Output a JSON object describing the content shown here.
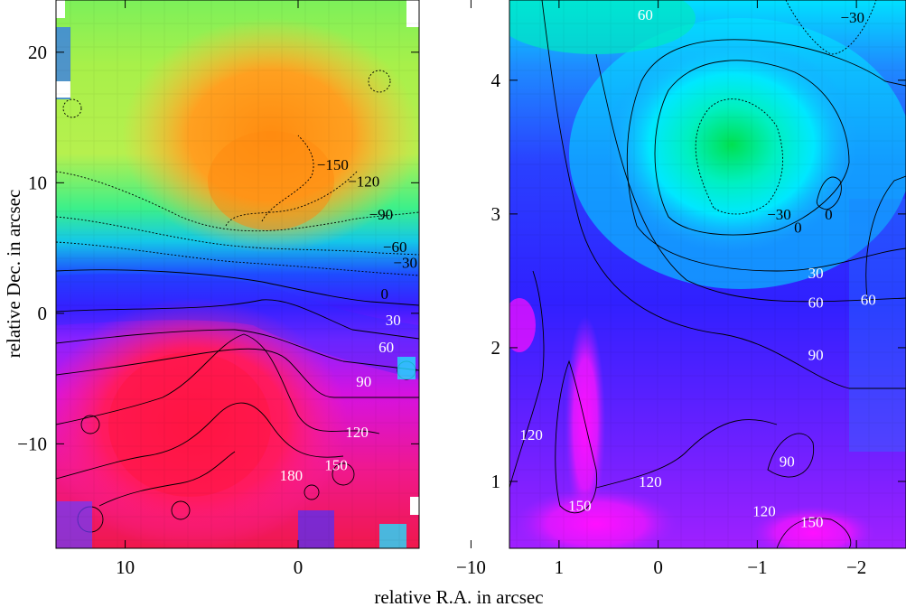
{
  "figure": {
    "shared_xlabel": "relative R.A. in arcsec"
  },
  "chart_data": [
    {
      "type": "heatmap",
      "panel": "left",
      "title": "",
      "xlabel": "relative R.A. in arcsec",
      "ylabel": "relative Dec. in arcsec",
      "xlim": [
        14,
        -7
      ],
      "ylim": [
        -18,
        24
      ],
      "x_inverted": true,
      "xticks": [
        10,
        0,
        -10
      ],
      "xtick_labels": [
        "10",
        "0",
        "−10"
      ],
      "yticks": [
        20,
        10,
        0,
        -10
      ],
      "ytick_labels": [
        "20",
        "10",
        "0",
        "−10"
      ],
      "grid": false,
      "legend": "none",
      "colormap": [
        "#ff1744",
        "#ff00cc",
        "#9c27ff",
        "#2a2aff",
        "#1e90ff",
        "#00e5ff",
        "#00e676",
        "#b2ff59",
        "#ffc107",
        "#ff9800"
      ],
      "contour_labels": [
        {
          "text": "−150",
          "x": -2.0,
          "y": 11.0
        },
        {
          "text": "−120",
          "x": -3.8,
          "y": 9.7
        },
        {
          "text": "−90",
          "x": -4.8,
          "y": 7.2
        },
        {
          "text": "−60",
          "x": -5.6,
          "y": 4.7
        },
        {
          "text": "−30",
          "x": -6.2,
          "y": 3.5
        },
        {
          "text": "0",
          "x": -5.0,
          "y": 1.1
        },
        {
          "text": "30",
          "x": -5.5,
          "y": -0.9
        },
        {
          "text": "60",
          "x": -5.1,
          "y": -3.0
        },
        {
          "text": "90",
          "x": -3.8,
          "y": -5.6
        },
        {
          "text": "120",
          "x": -3.4,
          "y": -9.5
        },
        {
          "text": "150",
          "x": -2.2,
          "y": -12.0
        },
        {
          "text": "180",
          "x": 0.4,
          "y": -12.8
        }
      ]
    },
    {
      "type": "heatmap",
      "panel": "right",
      "title": "",
      "xlabel": "relative R.A. in arcsec",
      "ylabel": "",
      "xlim": [
        1.5,
        -2.5
      ],
      "ylim": [
        0.5,
        4.6
      ],
      "x_inverted": true,
      "xticks": [
        1,
        0,
        -1,
        -2
      ],
      "xtick_labels": [
        "1",
        "0",
        "−1",
        "−2"
      ],
      "yticks": [
        4,
        3,
        2,
        1
      ],
      "ytick_labels": [
        "4",
        "3",
        "2",
        "1"
      ],
      "grid": false,
      "legend": "none",
      "colormap": [
        "#ff1744",
        "#ff00cc",
        "#9c27ff",
        "#2a2aff",
        "#1e90ff",
        "#00e5ff",
        "#00e676",
        "#b2ff59",
        "#ffc107",
        "#ff9800"
      ],
      "contour_labels": [
        {
          "text": "60",
          "x": 0.13,
          "y": 4.45
        },
        {
          "text": "−30",
          "x": -1.96,
          "y": 4.43
        },
        {
          "text": "−30",
          "x": -1.22,
          "y": 2.96
        },
        {
          "text": "0",
          "x": -1.41,
          "y": 2.86
        },
        {
          "text": "0",
          "x": -1.72,
          "y": 2.96
        },
        {
          "text": "30",
          "x": -1.59,
          "y": 2.52
        },
        {
          "text": "60",
          "x": -1.59,
          "y": 2.3
        },
        {
          "text": "60",
          "x": -2.12,
          "y": 2.32
        },
        {
          "text": "90",
          "x": -1.59,
          "y": 1.91
        },
        {
          "text": "120",
          "x": 1.28,
          "y": 1.31
        },
        {
          "text": "150",
          "x": 0.79,
          "y": 0.78
        },
        {
          "text": "120",
          "x": 0.08,
          "y": 0.96
        },
        {
          "text": "90",
          "x": -1.3,
          "y": 1.11
        },
        {
          "text": "120",
          "x": -1.07,
          "y": 0.74
        },
        {
          "text": "150",
          "x": -1.55,
          "y": 0.66
        }
      ]
    }
  ]
}
